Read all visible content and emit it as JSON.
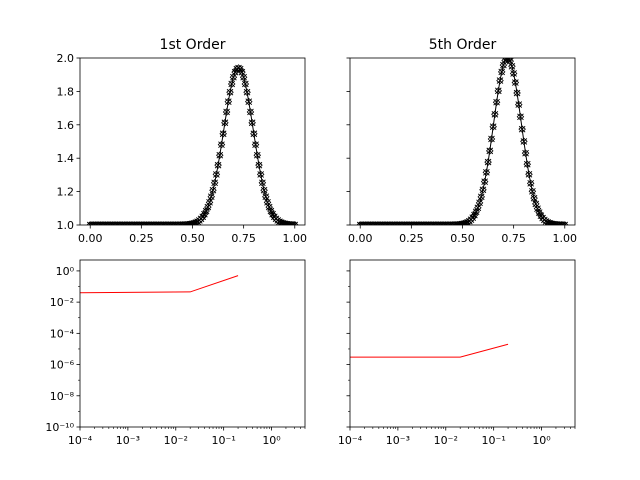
{
  "chart_data": [
    {
      "type": "scatter",
      "title": "1st Order",
      "xlabel": "",
      "ylabel": "",
      "xlim": [
        -0.05,
        1.05
      ],
      "ylim": [
        1.0,
        2.0
      ],
      "xticks": [
        "0.00",
        "0.25",
        "0.50",
        "0.75",
        "1.00"
      ],
      "yticks": [
        "1.0",
        "1.2",
        "1.4",
        "1.6",
        "1.8",
        "2.0"
      ],
      "series": [
        {
          "marker": "x",
          "color": "#000000",
          "line": "solid",
          "linewidth": 1,
          "peak_x": 0.725,
          "peak_y": 1.94,
          "baseline": 1.0,
          "sigma": 0.072,
          "n_points": 121,
          "x_range": [
            0.0,
            1.0
          ]
        },
        {
          "marker": "diamond-open",
          "color": "#000000",
          "line": "none",
          "peak_x": 0.725,
          "peak_y": 1.94,
          "baseline": 1.0,
          "sigma": 0.072,
          "n_points": 121,
          "x_range": [
            0.0,
            1.0
          ]
        }
      ],
      "grid": false
    },
    {
      "type": "scatter",
      "title": "5th Order",
      "xlabel": "",
      "ylabel": "",
      "xlim": [
        -0.05,
        1.05
      ],
      "ylim": [
        1.0,
        2.0
      ],
      "xticks": [
        "0.00",
        "0.25",
        "0.50",
        "0.75",
        "1.00"
      ],
      "yticks": [],
      "series": [
        {
          "marker": "x",
          "color": "#000000",
          "line": "solid",
          "linewidth": 1,
          "peak_x": 0.72,
          "peak_y": 2.0,
          "baseline": 1.0,
          "sigma": 0.068,
          "n_points": 121,
          "x_range": [
            0.0,
            1.0
          ]
        },
        {
          "marker": "diamond-open",
          "color": "#000000",
          "line": "none",
          "peak_x": 0.72,
          "peak_y": 2.0,
          "baseline": 1.0,
          "sigma": 0.068,
          "n_points": 121,
          "x_range": [
            0.0,
            1.0
          ]
        }
      ],
      "grid": false
    },
    {
      "type": "line",
      "title": "",
      "xscale": "log",
      "yscale": "log",
      "xlim": [
        0.0001,
        5
      ],
      "ylim": [
        1e-10,
        5
      ],
      "xticks": [
        "10⁻⁴",
        "10⁻³",
        "10⁻²",
        "10⁻¹",
        "10⁰"
      ],
      "yticks": [
        "10⁰",
        "10⁻²",
        "10⁻⁴",
        "10⁻⁶",
        "10⁻⁸",
        "10⁻¹⁰"
      ],
      "series": [
        {
          "color": "#ff0000",
          "x": [
            0.0001,
            0.02,
            0.2
          ],
          "y": [
            0.04,
            0.045,
            0.5
          ]
        }
      ],
      "grid": false
    },
    {
      "type": "line",
      "title": "",
      "xscale": "log",
      "yscale": "log",
      "xlim": [
        0.0001,
        5
      ],
      "ylim": [
        1e-10,
        5
      ],
      "xticks": [
        "10⁻⁴",
        "10⁻³",
        "10⁻²",
        "10⁻¹",
        "10⁰"
      ],
      "yticks": [],
      "series": [
        {
          "color": "#ff0000",
          "x": [
            0.0001,
            0.02,
            0.2
          ],
          "y": [
            3e-06,
            3e-06,
            2e-05
          ]
        }
      ],
      "grid": false
    }
  ]
}
